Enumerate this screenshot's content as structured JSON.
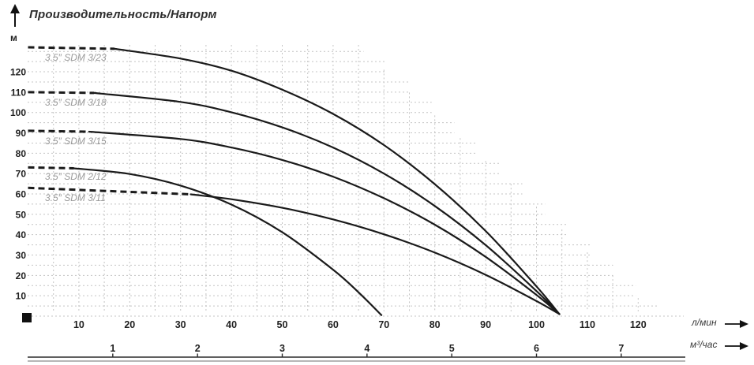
{
  "chart_data": {
    "type": "line",
    "title": "Производительность/Напорм",
    "y_axis": {
      "unit": "м",
      "ticks": [
        10,
        20,
        30,
        40,
        50,
        60,
        70,
        80,
        90,
        100,
        110,
        120
      ],
      "range": [
        0,
        133
      ]
    },
    "x_axis_primary": {
      "label": "л/мин",
      "ticks": [
        10,
        20,
        30,
        40,
        50,
        60,
        70,
        80,
        90,
        100,
        110,
        120
      ],
      "range": [
        0,
        128
      ]
    },
    "x_axis_secondary": {
      "label": "м³/час",
      "ticks": [
        1,
        2,
        3,
        4,
        5,
        6,
        7
      ]
    },
    "grid": {
      "x_step_lmin": 5,
      "y_step_m": 5,
      "color": "#c4c4c4",
      "style": "dotted"
    },
    "colors": {
      "curve": "#1a1a1a",
      "curve_label": "#9a9a9a",
      "axis_text": "#1f1f1f",
      "marker": "#111111"
    },
    "series": [
      {
        "name": "3.5″ SDM 3/23",
        "max_head_m": 132,
        "end_flow_lmin": 104.5,
        "dash_points": [
          [
            0,
            132
          ],
          [
            17,
            131.3
          ]
        ],
        "points": [
          [
            17,
            131.3
          ],
          [
            30,
            126.5
          ],
          [
            40,
            120.5
          ],
          [
            50,
            111.2
          ],
          [
            60,
            99.3
          ],
          [
            70,
            84
          ],
          [
            80,
            64.8
          ],
          [
            90,
            41.8
          ],
          [
            100,
            14.6
          ],
          [
            104.5,
            1
          ]
        ]
      },
      {
        "name": "3.5″ SDM 3/18",
        "max_head_m": 110,
        "end_flow_lmin": 104.5,
        "dash_points": [
          [
            0,
            110
          ],
          [
            13,
            109.6
          ]
        ],
        "points": [
          [
            13,
            109.6
          ],
          [
            30,
            105.2
          ],
          [
            40,
            100.1
          ],
          [
            50,
            92.7
          ],
          [
            60,
            82.8
          ],
          [
            70,
            70
          ],
          [
            80,
            54.1
          ],
          [
            90,
            34.9
          ],
          [
            100,
            12.3
          ],
          [
            104.5,
            1
          ]
        ]
      },
      {
        "name": "3.5″ SDM 3/15",
        "max_head_m": 91,
        "end_flow_lmin": 104.5,
        "dash_points": [
          [
            0,
            91
          ],
          [
            12,
            90.6
          ]
        ],
        "points": [
          [
            12,
            90.6
          ],
          [
            30,
            87
          ],
          [
            40,
            82.8
          ],
          [
            50,
            76.7
          ],
          [
            60,
            68.5
          ],
          [
            70,
            57.9
          ],
          [
            80,
            44.9
          ],
          [
            90,
            29.1
          ],
          [
            100,
            10.4
          ],
          [
            104.5,
            1
          ]
        ]
      },
      {
        "name": "3.5″ SDM 2/12",
        "max_head_m": 73,
        "end_flow_lmin": 69.5,
        "dash_points": [
          [
            0,
            73
          ],
          [
            9,
            72.6
          ]
        ],
        "points": [
          [
            9,
            72.6
          ],
          [
            20,
            69.8
          ],
          [
            30,
            64.1
          ],
          [
            40,
            54.8
          ],
          [
            50,
            41.2
          ],
          [
            60,
            22.8
          ],
          [
            65,
            11.7
          ],
          [
            69.5,
            0.5
          ]
        ]
      },
      {
        "name": "3.5″ SDM 3/11",
        "max_head_m": 63,
        "end_flow_lmin": 104.5,
        "dash_points": [
          [
            0,
            63
          ],
          [
            32,
            59.8
          ]
        ],
        "points": [
          [
            32,
            59.8
          ],
          [
            40,
            57.4
          ],
          [
            50,
            53.2
          ],
          [
            60,
            47.5
          ],
          [
            70,
            40.2
          ],
          [
            80,
            31.2
          ],
          [
            90,
            20.3
          ],
          [
            100,
            7.4
          ],
          [
            104.5,
            1
          ]
        ]
      }
    ]
  }
}
